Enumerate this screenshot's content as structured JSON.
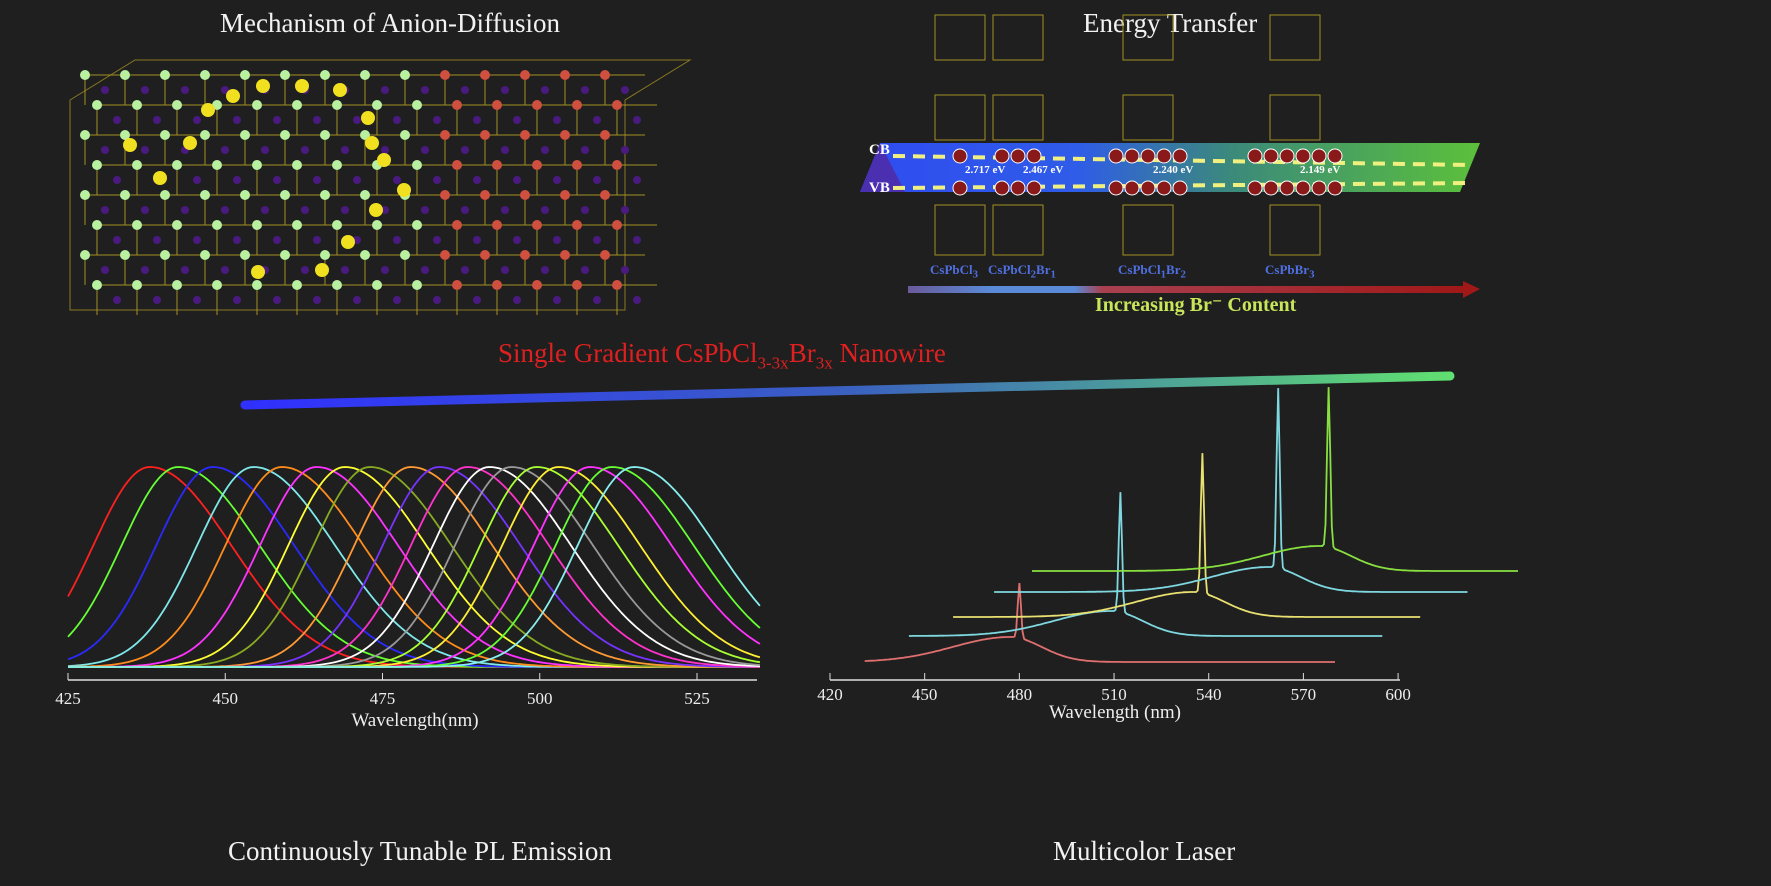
{
  "panels": {
    "diffusion_title": "Mechanism of Anion-Diffusion",
    "energy_title": "Energy Transfer",
    "nanowire_title_prefix": "Single Gradient CsPbCl",
    "nanowire_sub1": "3-3x",
    "nanowire_mid": "Br",
    "nanowire_sub2": "3x",
    "nanowire_suffix": "Nanowire",
    "pl_title": "Continuously Tunable PL Emission",
    "laser_title": "Multicolor Laser"
  },
  "energy": {
    "cb_label": "CB",
    "vb_label": "VB",
    "gaps": [
      "2.717 eV",
      "2.467 eV",
      "2.240 eV",
      "2.149 eV"
    ],
    "compounds": [
      {
        "base": "CsPbCl",
        "s1": "3",
        "br": "",
        "s2": ""
      },
      {
        "base": "CsPbCl",
        "s1": "2",
        "br": "Br",
        "s2": "1"
      },
      {
        "base": "CsPbCl",
        "s1": "1",
        "br": "Br",
        "s2": "2"
      },
      {
        "base": "CsPbBr",
        "s1": "3",
        "br": "",
        "s2": ""
      }
    ],
    "carriers": [
      1,
      3,
      5,
      6
    ],
    "arrow_label": "Increasing Br⁻ Content",
    "colors": {
      "blue": "#2f4cf0",
      "green": "#5cc03a",
      "arrow_label": "#c8e65a",
      "compound": "#4f6fe0"
    }
  },
  "chart_data": [
    {
      "type": "line",
      "xlabel": "Wavelength(nm)",
      "ylabel": "",
      "xlim": [
        425,
        535
      ],
      "xticks": [
        425,
        450,
        475,
        500,
        525
      ],
      "series": [
        {
          "peak": 438,
          "color": "#ff2020"
        },
        {
          "peak": 442.5,
          "color": "#66ff33"
        },
        {
          "peak": 448,
          "color": "#2a2aff"
        },
        {
          "peak": 454.5,
          "color": "#7fe8ea"
        },
        {
          "peak": 459,
          "color": "#ff8c1a"
        },
        {
          "peak": 464.5,
          "color": "#ff33ff"
        },
        {
          "peak": 469,
          "color": "#ffff33"
        },
        {
          "peak": 473,
          "color": "#88aa22"
        },
        {
          "peak": 479.5,
          "color": "#ff9933"
        },
        {
          "peak": 484,
          "color": "#7733ff"
        },
        {
          "peak": 488.5,
          "color": "#ff33cc"
        },
        {
          "peak": 492,
          "color": "#ffffff"
        },
        {
          "peak": 495.5,
          "color": "#999999"
        },
        {
          "peak": 499.5,
          "color": "#aaff33"
        },
        {
          "peak": 503,
          "color": "#ffee33"
        },
        {
          "peak": 508,
          "color": "#ff33ff"
        },
        {
          "peak": 511.5,
          "color": "#66ff33"
        },
        {
          "peak": 515,
          "color": "#88eeee"
        }
      ]
    },
    {
      "type": "line",
      "xlabel": "Wavelength (nm)",
      "ylabel": "",
      "xlim": [
        420,
        600
      ],
      "xticks": [
        420,
        450,
        480,
        510,
        540,
        570,
        600
      ],
      "series": [
        {
          "peak": 480,
          "color": "#e07070",
          "range": [
            431,
            580
          ]
        },
        {
          "peak": 512,
          "color": "#7fd8e0",
          "range": [
            445,
            595
          ]
        },
        {
          "peak": 538,
          "color": "#e8e070",
          "range": [
            459,
            607
          ]
        },
        {
          "peak": 562,
          "color": "#7fd8e0",
          "range": [
            472,
            622
          ]
        },
        {
          "peak": 578,
          "color": "#88e040",
          "range": [
            484,
            638
          ]
        }
      ]
    }
  ]
}
